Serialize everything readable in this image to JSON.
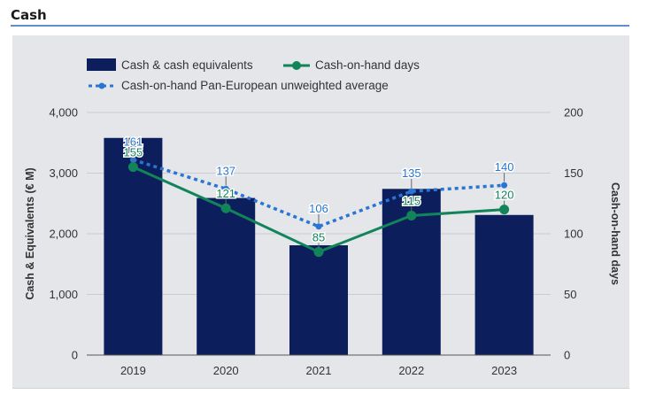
{
  "header": {
    "title": "Cash"
  },
  "colors": {
    "bar": "#0c1f5c",
    "days_line": "#12845a",
    "avg_line": "#2a75d3",
    "panel": "#e4e6e9",
    "rule": "#5b8fd0"
  },
  "chart_data": {
    "type": "bar",
    "categories": [
      "2019",
      "2020",
      "2021",
      "2022",
      "2023"
    ],
    "series": [
      {
        "name": "Cash & cash equivalents",
        "type": "bar",
        "axis": "left",
        "values": [
          3580,
          2590,
          1810,
          2740,
          2310
        ]
      },
      {
        "name": "Cash-on-hand days",
        "type": "line",
        "axis": "right",
        "values": [
          155,
          121,
          85,
          115,
          120
        ]
      },
      {
        "name": "Cash-on-hand Pan-European unweighted average",
        "type": "line",
        "style": "dotted",
        "axis": "right",
        "values": [
          161,
          137,
          106,
          135,
          140
        ]
      }
    ],
    "ylabel": "Cash & Equivalents (€ M)",
    "y2label": "Cash-on-hand days",
    "ylim": [
      0,
      4000
    ],
    "y2lim": [
      0,
      200
    ],
    "yticks": [
      "0",
      "1,000",
      "2,000",
      "3,000",
      "4,000"
    ],
    "y2ticks": [
      "0",
      "50",
      "100",
      "150",
      "200"
    ],
    "grid": true,
    "legend": "top-left"
  }
}
